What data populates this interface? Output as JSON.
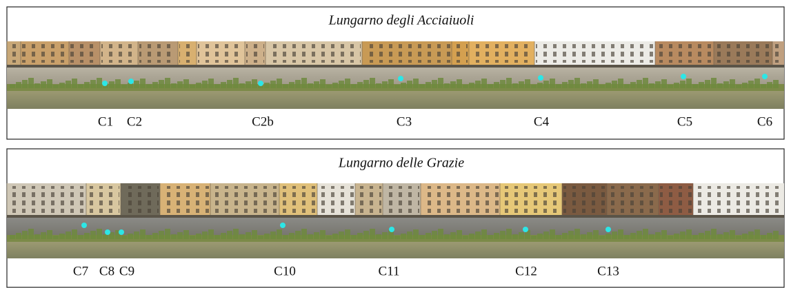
{
  "panels": [
    {
      "title": "Lungarno degli Acciaiuoli",
      "labels": [
        "C1",
        "C2",
        "C2b",
        "C3",
        "C4",
        "C5",
        "C6"
      ]
    },
    {
      "title": "Lungarno delle Grazie",
      "labels": [
        "C7",
        "C8",
        "C9",
        "C10",
        "C11",
        "C12",
        "C13"
      ]
    }
  ]
}
